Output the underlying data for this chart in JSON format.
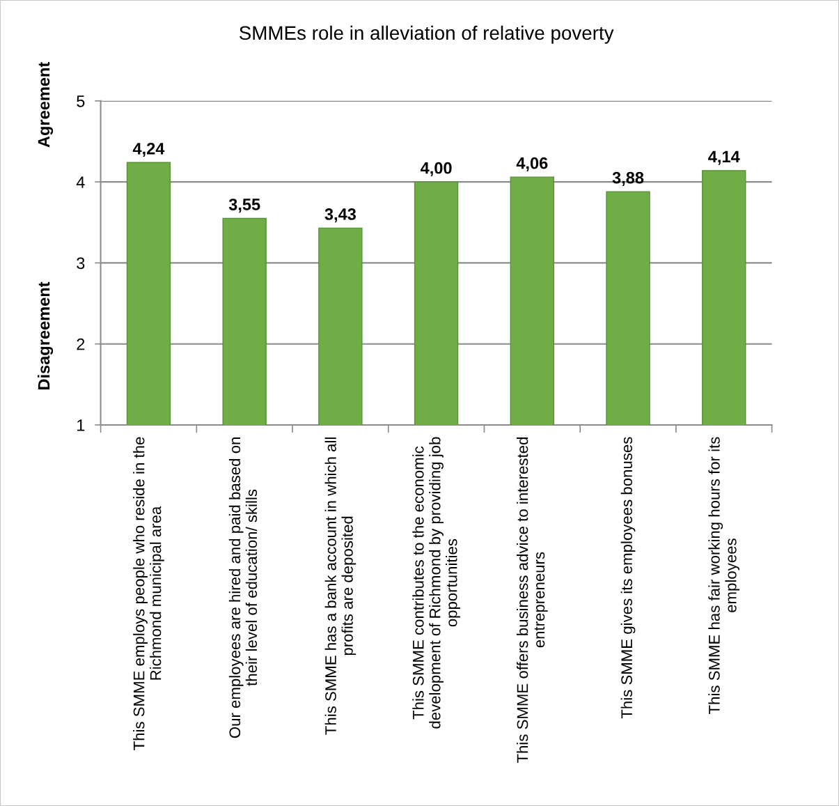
{
  "chart_data": {
    "type": "bar",
    "title": "SMMEs role in alleviation of relative poverty",
    "categories": [
      "This SMME employs people who reside in the\nRichmond municipal area",
      "Our employees are hired and paid based on\ntheir level of education/ skills",
      "This SMME has a bank account in which all\nprofits are deposited",
      "This SMME contributes to the economic\ndevelopment of Richmond by providing job\nopportunities",
      "This SMME offers business advice to interested\nentrepreneurs",
      "This SMME gives its employees bonuses",
      "This SMME has fair working hours for its\nemployees"
    ],
    "values": [
      4.24,
      3.55,
      3.43,
      4.0,
      4.06,
      3.88,
      4.14
    ],
    "value_labels": [
      "4,24",
      "3,55",
      "3,43",
      "4,00",
      "4,06",
      "3,88",
      "4,14"
    ],
    "color": "#70ad47",
    "ylim": [
      1,
      5
    ],
    "yticks": [
      1,
      2,
      3,
      4,
      5
    ],
    "grid": "y",
    "annotations": [
      "Agreement",
      "Disagreement"
    ]
  }
}
